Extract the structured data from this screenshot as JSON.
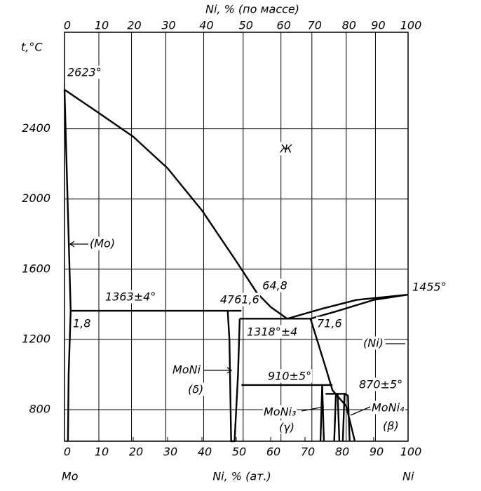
{
  "chart_data": {
    "type": "line",
    "x2label": "Ni, % (по массе)",
    "xlabel": "Ni, % (ат.)",
    "ylabel": "t,°C",
    "left_label": "Mo",
    "right_label": "Ni",
    "xlim": [
      0,
      100
    ],
    "xticks": [
      0,
      10,
      20,
      30,
      40,
      50,
      60,
      70,
      80,
      90,
      100
    ],
    "x2ticks": [
      {
        "value": 0,
        "label": "0"
      },
      {
        "value": 10,
        "label": "10"
      },
      {
        "value": 19.5,
        "label": "20"
      },
      {
        "value": 29.5,
        "label": "30"
      },
      {
        "value": 40.5,
        "label": "40"
      },
      {
        "value": 52,
        "label": "50"
      },
      {
        "value": 63,
        "label": "60"
      },
      {
        "value": 72,
        "label": "70"
      },
      {
        "value": 82,
        "label": "80"
      },
      {
        "value": 90.5,
        "label": "90"
      },
      {
        "value": 100,
        "label": "100"
      }
    ],
    "ylim": [
      620,
      2950
    ],
    "yticks": [
      800,
      1200,
      1600,
      2000,
      2400
    ],
    "grid": true,
    "color": "#000000",
    "series": [
      {
        "x": [
          0,
          10,
          20,
          30,
          40,
          50,
          56,
          60,
          64.8
        ],
        "values": [
          2623,
          2490,
          2355,
          2175,
          1935,
          1645,
          1465,
          1385,
          1318
        ]
      },
      {
        "x": [
          64.8,
          75,
          85,
          100
        ],
        "values": [
          1318,
          1375,
          1425,
          1455
        ]
      },
      {
        "x": [
          71.6,
          80,
          90,
          100
        ],
        "values": [
          1318,
          1365,
          1425,
          1455
        ]
      },
      {
        "x": [
          0,
          1.8,
          1.2,
          1.0
        ],
        "values": [
          2623,
          1363,
          1000,
          620
        ]
      },
      {
        "x": [
          1.8,
          51.5
        ],
        "values": [
          1363,
          1363
        ]
      },
      {
        "x": [
          47.5,
          48,
          48.5,
          49.5,
          50.5,
          51
        ],
        "values": [
          1363,
          1200,
          620,
          620,
          1000,
          1318
        ]
      },
      {
        "x": [
          51,
          71.6
        ],
        "values": [
          1318,
          1318
        ]
      },
      {
        "x": [
          71.6,
          76,
          78,
          82,
          84.5
        ],
        "values": [
          1318,
          1040,
          910,
          820,
          620
        ]
      },
      {
        "x": [
          51.5,
          78
        ],
        "values": [
          940,
          940
        ]
      },
      {
        "x": [
          74.5,
          75,
          75,
          75.5
        ],
        "values": [
          620,
          940,
          940,
          620
        ]
      },
      {
        "x": [
          76,
          82
        ],
        "values": [
          890,
          890
        ]
      },
      {
        "x": [
          78.5,
          79,
          79.5,
          80
        ],
        "values": [
          620,
          890,
          890,
          620
        ]
      },
      {
        "x": [
          81,
          81.5,
          82.5,
          83
        ],
        "values": [
          620,
          890,
          880,
          620
        ]
      }
    ],
    "annotations": [
      "2623°",
      "Ж",
      "(Mo)",
      "1363±4°",
      "47",
      "61,6",
      "64,8",
      "1455°",
      "1,8",
      "1318°±4",
      "71,6",
      "(Ni)",
      "MoNi",
      "(δ)",
      "910±5°",
      "870±5°",
      "MoNi₃",
      "(γ)",
      "MoNi₄",
      "(β)"
    ]
  }
}
